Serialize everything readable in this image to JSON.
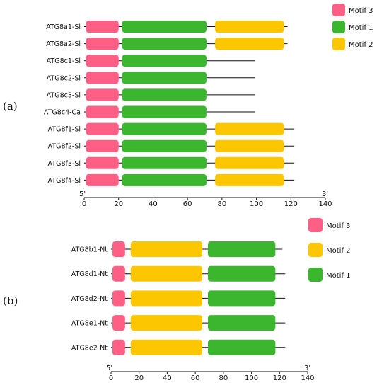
{
  "colors": {
    "motif1": "#3cb52f",
    "motif2": "#fcc600",
    "motif3": "#ff5f85",
    "line": "#111111"
  },
  "panels": [
    {
      "label": "(a)",
      "legend": [
        {
          "key": "motif3",
          "text": "Motif 3"
        },
        {
          "key": "motif1",
          "text": "Motif 1"
        },
        {
          "key": "motif2",
          "text": "Motif 2"
        }
      ],
      "axis": {
        "start_label": "5'",
        "end_label": "3'",
        "min": 0,
        "max": 140,
        "ticks": [
          0,
          20,
          40,
          60,
          80,
          100,
          120,
          140
        ]
      },
      "rows": [
        {
          "name": "ATG8a1-Sl",
          "length": 118,
          "motifs": [
            {
              "key": "motif3",
              "start": 1,
              "end": 20
            },
            {
              "key": "motif1",
              "start": 22,
              "end": 71
            },
            {
              "key": "motif2",
              "start": 76,
              "end": 116
            }
          ]
        },
        {
          "name": "ATG8a2-Sl",
          "length": 118,
          "motifs": [
            {
              "key": "motif3",
              "start": 1,
              "end": 20
            },
            {
              "key": "motif1",
              "start": 22,
              "end": 71
            },
            {
              "key": "motif2",
              "start": 76,
              "end": 116
            }
          ]
        },
        {
          "name": "ATG8c1-Sl",
          "length": 99,
          "motifs": [
            {
              "key": "motif3",
              "start": 1,
              "end": 20
            },
            {
              "key": "motif1",
              "start": 22,
              "end": 71
            }
          ]
        },
        {
          "name": "ATG8c2-Sl",
          "length": 99,
          "motifs": [
            {
              "key": "motif3",
              "start": 1,
              "end": 20
            },
            {
              "key": "motif1",
              "start": 22,
              "end": 71
            }
          ]
        },
        {
          "name": "ATG8c3-Sl",
          "length": 99,
          "motifs": [
            {
              "key": "motif3",
              "start": 1,
              "end": 20
            },
            {
              "key": "motif1",
              "start": 22,
              "end": 71
            }
          ]
        },
        {
          "name": "ATG8c4-Ca",
          "length": 99,
          "motifs": [
            {
              "key": "motif3",
              "start": 1,
              "end": 20
            },
            {
              "key": "motif1",
              "start": 22,
              "end": 71
            }
          ]
        },
        {
          "name": "ATG8f1-Sl",
          "length": 122,
          "motifs": [
            {
              "key": "motif3",
              "start": 1,
              "end": 20
            },
            {
              "key": "motif1",
              "start": 22,
              "end": 71
            },
            {
              "key": "motif2",
              "start": 76,
              "end": 116
            }
          ]
        },
        {
          "name": "ATG8f2-Sl",
          "length": 122,
          "motifs": [
            {
              "key": "motif3",
              "start": 1,
              "end": 20
            },
            {
              "key": "motif1",
              "start": 22,
              "end": 71
            },
            {
              "key": "motif2",
              "start": 76,
              "end": 116
            }
          ]
        },
        {
          "name": "ATG8f3-Sl",
          "length": 122,
          "motifs": [
            {
              "key": "motif3",
              "start": 1,
              "end": 20
            },
            {
              "key": "motif1",
              "start": 22,
              "end": 71
            },
            {
              "key": "motif2",
              "start": 76,
              "end": 116
            }
          ]
        },
        {
          "name": "ATG8f4-Sl",
          "length": 122,
          "motifs": [
            {
              "key": "motif3",
              "start": 1,
              "end": 20
            },
            {
              "key": "motif1",
              "start": 22,
              "end": 71
            },
            {
              "key": "motif2",
              "start": 76,
              "end": 116
            }
          ]
        }
      ]
    },
    {
      "label": "(b)",
      "legend": [
        {
          "key": "motif3",
          "text": "Motif 3"
        },
        {
          "key": "motif2",
          "text": "Motif 2"
        },
        {
          "key": "motif1",
          "text": "Motif 1"
        }
      ],
      "axis": {
        "start_label": "5'",
        "end_label": "3'",
        "min": 0,
        "max": 140,
        "ticks": [
          0,
          20,
          40,
          60,
          80,
          100,
          120,
          140
        ]
      },
      "rows": [
        {
          "name": "ATG8b1-Nt",
          "length": 122,
          "motifs": [
            {
              "key": "motif3",
              "start": 1,
              "end": 10
            },
            {
              "key": "motif2",
              "start": 14,
              "end": 65
            },
            {
              "key": "motif1",
              "start": 69,
              "end": 117
            }
          ]
        },
        {
          "name": "ATG8d1-Nt",
          "length": 124,
          "motifs": [
            {
              "key": "motif3",
              "start": 1,
              "end": 10
            },
            {
              "key": "motif2",
              "start": 14,
              "end": 65
            },
            {
              "key": "motif1",
              "start": 69,
              "end": 117
            }
          ]
        },
        {
          "name": "ATG8d2-Nt",
          "length": 124,
          "motifs": [
            {
              "key": "motif3",
              "start": 1,
              "end": 10
            },
            {
              "key": "motif2",
              "start": 14,
              "end": 65
            },
            {
              "key": "motif1",
              "start": 69,
              "end": 117
            }
          ]
        },
        {
          "name": "ATG8e1-Nt",
          "length": 124,
          "motifs": [
            {
              "key": "motif3",
              "start": 1,
              "end": 10
            },
            {
              "key": "motif2",
              "start": 14,
              "end": 65
            },
            {
              "key": "motif1",
              "start": 69,
              "end": 117
            }
          ]
        },
        {
          "name": "ATG8e2-Nt",
          "length": 124,
          "motifs": [
            {
              "key": "motif3",
              "start": 1,
              "end": 10
            },
            {
              "key": "motif2",
              "start": 14,
              "end": 65
            },
            {
              "key": "motif1",
              "start": 69,
              "end": 117
            }
          ]
        }
      ]
    }
  ]
}
